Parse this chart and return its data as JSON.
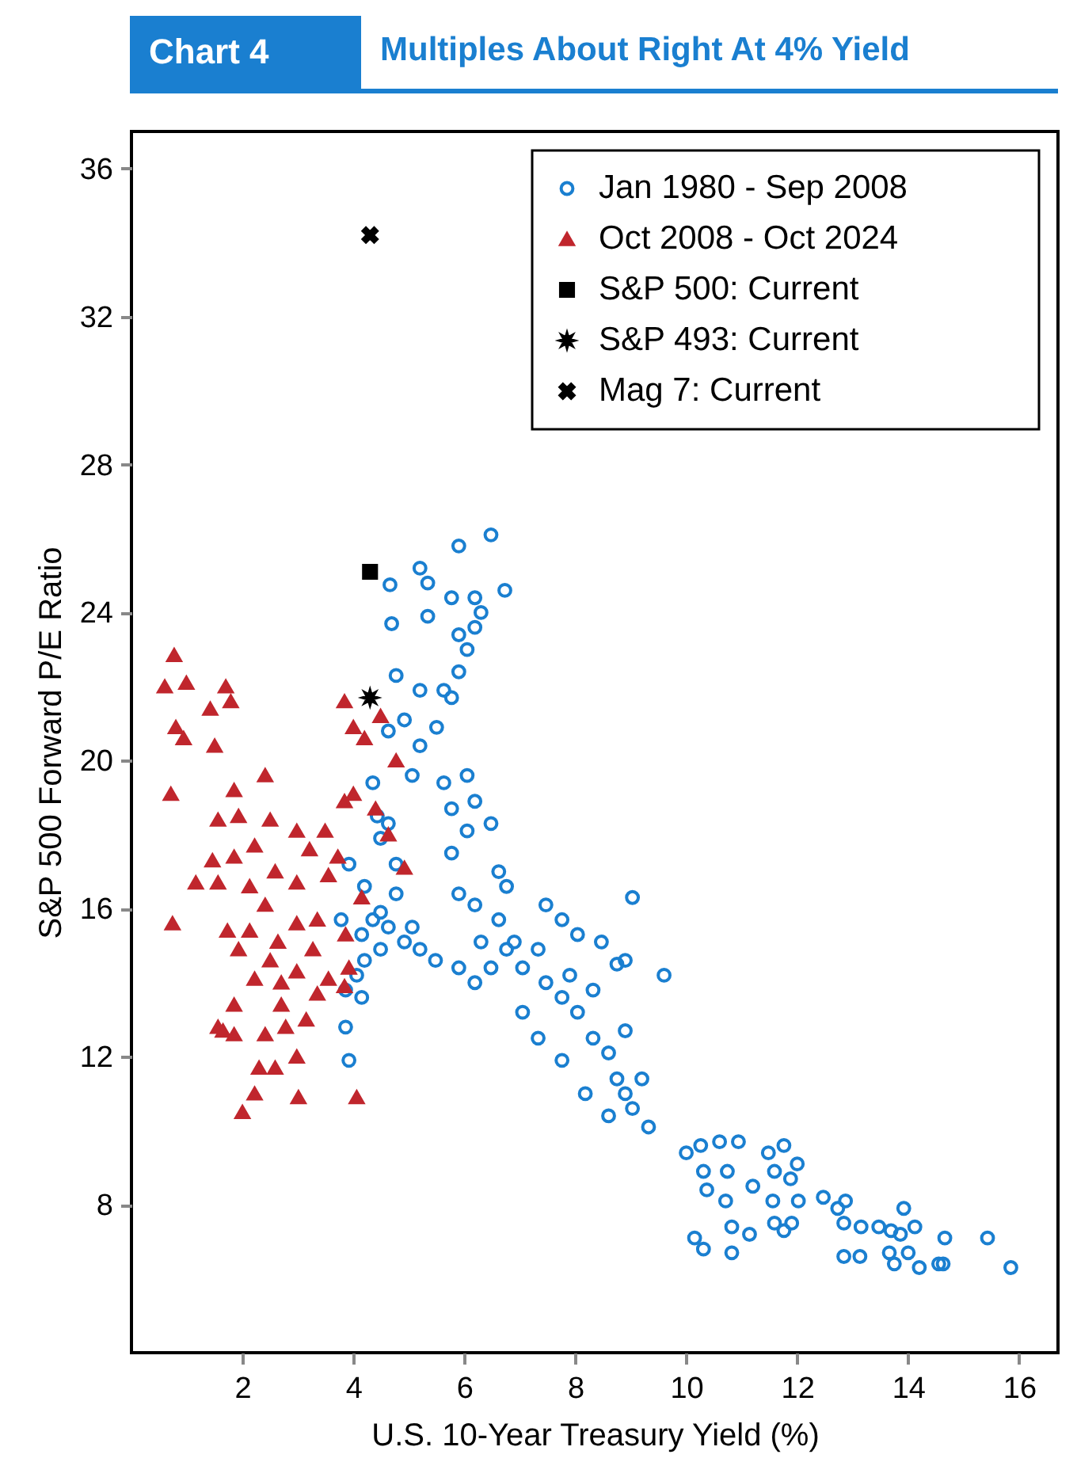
{
  "chart_data": {
    "type": "scatter",
    "title": "Multiples About Right At 4% Yield",
    "subtitle": "Chart 4",
    "xlabel": "U.S. 10-Year Treasury Yield (%)",
    "ylabel": "S&P 500 Forward P/E Ratio",
    "xlim": [
      0,
      16.7
    ],
    "xticks": [
      2,
      4,
      6,
      8,
      10,
      12,
      14,
      16
    ],
    "ylim": [
      4,
      37
    ],
    "yticks": [
      8,
      12,
      16,
      20,
      24,
      28,
      32,
      36
    ],
    "grid": false,
    "legend": "top right",
    "series": [
      {
        "name": "Jan 1980 - Sep 2008",
        "color": "#1a7fd0",
        "marker": "circle",
        "x": [
          4.66,
          5.2,
          5.34,
          5.9,
          6.48,
          6.73,
          4.69,
          5.34,
          5.77,
          6.19,
          5.9,
          6.05,
          5.9,
          5.63,
          5.2,
          4.77,
          4.92,
          5.2,
          4.63,
          5.06,
          5.5,
          5.77,
          6.19,
          6.3,
          4.35,
          4.43,
          4.49,
          4.63,
          4.77,
          4.2,
          4.35,
          4.63,
          4.92,
          5.2,
          5.48,
          5.9,
          6.3,
          3.92,
          3.78,
          3.86,
          3.92,
          4.15,
          5.63,
          6.05,
          5.77,
          6.19,
          6.48,
          6.05,
          6.62,
          6.76,
          5.77,
          6.19,
          6.62,
          6.9,
          7.05,
          7.47,
          7.76,
          8.04,
          8.32,
          8.6,
          8.75,
          8.9,
          9.03,
          9.32,
          7.47,
          7.76,
          8.04,
          8.47,
          8.9,
          9.03,
          9.6,
          7.05,
          7.33,
          7.76,
          8.18,
          8.6,
          6.76,
          6.48,
          6.19,
          5.9,
          7.9,
          8.32,
          8.9,
          9.2,
          7.33,
          8.75,
          4.49,
          4.77,
          5.06,
          4.49,
          4.2,
          4.06,
          3.86,
          4.15,
          10.0,
          10.26,
          10.6,
          10.94,
          10.31,
          10.37,
          10.74,
          10.71,
          11.2,
          10.15,
          10.31,
          10.82,
          10.82,
          11.14,
          11.48,
          11.76,
          12.0,
          11.59,
          11.88,
          11.56,
          12.02,
          11.59,
          11.9,
          11.76,
          12.47,
          12.73,
          12.87,
          12.84,
          13.15,
          13.47,
          13.69,
          12.84,
          13.13,
          13.66,
          13.92,
          13.86,
          14.12,
          13.75,
          14.0,
          14.2,
          14.55,
          14.66,
          14.63,
          15.43,
          15.85
        ],
        "values": [
          24.75,
          25.2,
          24.8,
          25.8,
          26.1,
          24.6,
          23.7,
          23.9,
          24.4,
          24.4,
          23.4,
          23.0,
          22.4,
          21.9,
          21.9,
          22.3,
          21.1,
          20.4,
          20.8,
          19.6,
          20.9,
          21.7,
          23.6,
          24.0,
          19.4,
          18.5,
          17.9,
          18.3,
          17.2,
          16.6,
          15.7,
          15.5,
          15.1,
          14.9,
          14.6,
          16.4,
          15.1,
          17.2,
          15.7,
          12.8,
          11.9,
          13.6,
          19.4,
          19.6,
          18.7,
          18.9,
          18.3,
          18.1,
          17.0,
          16.6,
          17.5,
          16.1,
          15.7,
          15.1,
          14.4,
          14.0,
          13.6,
          13.2,
          12.5,
          12.1,
          11.4,
          11.0,
          10.6,
          10.1,
          16.1,
          15.7,
          15.3,
          15.1,
          14.6,
          16.3,
          14.2,
          13.2,
          12.5,
          11.9,
          11.0,
          10.4,
          14.9,
          14.4,
          14.0,
          14.4,
          14.2,
          13.8,
          12.7,
          11.4,
          14.9,
          14.5,
          15.9,
          16.4,
          15.5,
          14.9,
          14.6,
          14.2,
          13.8,
          15.3,
          9.4,
          9.6,
          9.7,
          9.7,
          8.9,
          8.4,
          8.9,
          8.1,
          8.5,
          7.1,
          6.8,
          7.4,
          6.7,
          7.2,
          9.4,
          9.6,
          9.1,
          8.9,
          8.7,
          8.1,
          8.1,
          7.5,
          7.5,
          7.3,
          8.2,
          7.9,
          8.1,
          7.5,
          7.4,
          7.4,
          7.3,
          6.6,
          6.6,
          6.7,
          7.9,
          7.2,
          7.4,
          6.4,
          6.7,
          6.3,
          6.4,
          7.1,
          6.4,
          7.1,
          6.3
        ]
      },
      {
        "name": "Oct 2008 - Oct 2024",
        "color": "#c0262d",
        "marker": "triangle",
        "x": [
          0.77,
          0.6,
          0.99,
          1.7,
          1.42,
          0.8,
          1.5,
          0.94,
          1.79,
          0.71,
          2.41,
          1.85,
          1.56,
          1.93,
          0.74,
          1.16,
          2.5,
          2.98,
          3.49,
          3.84,
          4.0,
          4.2,
          4.49,
          4.77,
          4.0,
          3.84,
          4.4,
          4.63,
          4.92,
          4.15,
          3.86,
          3.92,
          3.72,
          3.21,
          4.06,
          2.0,
          2.22,
          3.01,
          2.59,
          1.65,
          1.85,
          2.22,
          2.7,
          2.78,
          3.35,
          3.55,
          3.15,
          2.3,
          1.73,
          2.13,
          2.64,
          2.98,
          3.27,
          1.56,
          1.85,
          2.22,
          2.59,
          2.98,
          2.13,
          2.41,
          1.93,
          2.5,
          2.98,
          3.35,
          1.85,
          2.41,
          2.98,
          1.46,
          3.55,
          1.56,
          2.7,
          3.84
        ],
        "values": [
          22.85,
          22.0,
          22.1,
          22.0,
          21.4,
          20.9,
          20.4,
          20.6,
          21.6,
          19.1,
          19.6,
          19.2,
          18.4,
          18.5,
          15.6,
          16.7,
          18.4,
          18.1,
          18.1,
          21.6,
          20.9,
          20.6,
          21.2,
          20.0,
          19.1,
          18.9,
          18.7,
          18.0,
          17.1,
          16.3,
          15.3,
          14.4,
          17.4,
          17.6,
          10.9,
          10.5,
          11.0,
          10.9,
          11.7,
          12.7,
          13.4,
          14.1,
          14.0,
          12.8,
          13.7,
          14.1,
          13.0,
          11.7,
          15.4,
          15.4,
          15.1,
          15.6,
          14.9,
          16.7,
          17.4,
          17.7,
          17.0,
          16.7,
          16.6,
          16.1,
          14.9,
          14.6,
          14.3,
          15.7,
          12.6,
          12.6,
          12.0,
          17.3,
          16.9,
          12.8,
          13.4,
          13.9
        ]
      },
      {
        "name": "S&P 500: Current",
        "color": "#000000",
        "marker": "square",
        "x": [
          4.3
        ],
        "values": [
          25.1
        ]
      },
      {
        "name": "S&P 493: Current",
        "color": "#000000",
        "marker": "star",
        "x": [
          4.3
        ],
        "values": [
          21.7
        ]
      },
      {
        "name": "Mag 7: Current",
        "color": "#000000",
        "marker": "cross",
        "x": [
          4.3
        ],
        "values": [
          34.2
        ]
      }
    ]
  }
}
